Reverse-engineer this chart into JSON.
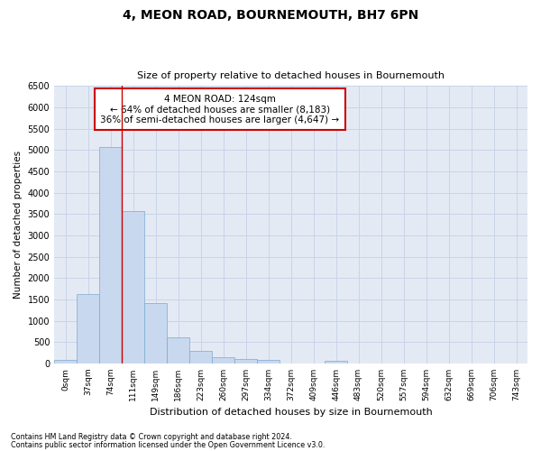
{
  "title": "4, MEON ROAD, BOURNEMOUTH, BH7 6PN",
  "subtitle": "Size of property relative to detached houses in Bournemouth",
  "xlabel": "Distribution of detached houses by size in Bournemouth",
  "ylabel": "Number of detached properties",
  "footnote1": "Contains HM Land Registry data © Crown copyright and database right 2024.",
  "footnote2": "Contains public sector information licensed under the Open Government Licence v3.0.",
  "bar_labels": [
    "0sqm",
    "37sqm",
    "74sqm",
    "111sqm",
    "149sqm",
    "186sqm",
    "223sqm",
    "260sqm",
    "297sqm",
    "334sqm",
    "372sqm",
    "409sqm",
    "446sqm",
    "483sqm",
    "520sqm",
    "557sqm",
    "594sqm",
    "632sqm",
    "669sqm",
    "706sqm",
    "743sqm"
  ],
  "bar_values": [
    75,
    1630,
    5060,
    3580,
    1420,
    620,
    300,
    155,
    110,
    80,
    0,
    0,
    65,
    0,
    0,
    0,
    0,
    0,
    0,
    0,
    0
  ],
  "bar_color": "#c8d8ee",
  "bar_edge_color": "#7aaad0",
  "vline_color": "#cc0000",
  "ylim": [
    0,
    6500
  ],
  "yticks": [
    0,
    500,
    1000,
    1500,
    2000,
    2500,
    3000,
    3500,
    4000,
    4500,
    5000,
    5500,
    6000,
    6500
  ],
  "annotation_line1": "4 MEON ROAD: 124sqm",
  "annotation_line2": "← 64% of detached houses are smaller (8,183)",
  "annotation_line3": "36% of semi-detached houses are larger (4,647) →",
  "annotation_box_color": "white",
  "annotation_box_edge_color": "#cc0000",
  "grid_color": "#c8d4e8",
  "bg_color": "#e4eaf4"
}
